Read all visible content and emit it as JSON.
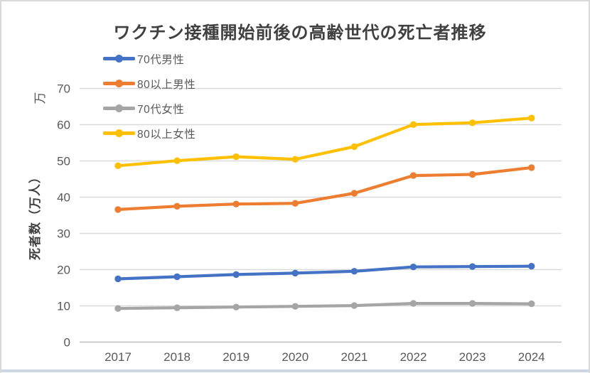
{
  "frame": {
    "border_color": "#d9d9d9",
    "bottom_strip_color": "#ccd6e5",
    "background": "#ffffff"
  },
  "chart_data": {
    "type": "line",
    "title": "ワクチン接種開始前後の高齢世代の死亡者推移",
    "title_color": "#404040",
    "y_unit_label": "万",
    "ylabel": "死者数（万人）",
    "ylim": [
      0,
      70
    ],
    "y_ticks": [
      0,
      10,
      20,
      30,
      40,
      50,
      60,
      70
    ],
    "categories": [
      "2017",
      "2018",
      "2019",
      "2020",
      "2021",
      "2022",
      "2023",
      "2024"
    ],
    "series": [
      {
        "name": "70代男性",
        "color": "#4472C4",
        "values": [
          17.3,
          17.9,
          18.5,
          18.9,
          19.4,
          20.6,
          20.7,
          20.8
        ]
      },
      {
        "name": "80以上男性",
        "color": "#ED7D31",
        "values": [
          36.5,
          37.4,
          38.0,
          38.2,
          41.0,
          45.9,
          46.2,
          48.1
        ]
      },
      {
        "name": "70代女性",
        "color": "#A5A5A5",
        "values": [
          9.1,
          9.3,
          9.5,
          9.7,
          9.9,
          10.5,
          10.5,
          10.4
        ]
      },
      {
        "name": "80以上女性",
        "color": "#FFC000",
        "values": [
          48.6,
          50.0,
          51.1,
          50.4,
          53.9,
          60.0,
          60.5,
          61.8
        ]
      }
    ],
    "grid": true,
    "gridline_color": "#d9d9d9",
    "axis_line_color": "#bfbfbf",
    "tick_label_color": "#595959",
    "legend_position": "top-left"
  }
}
